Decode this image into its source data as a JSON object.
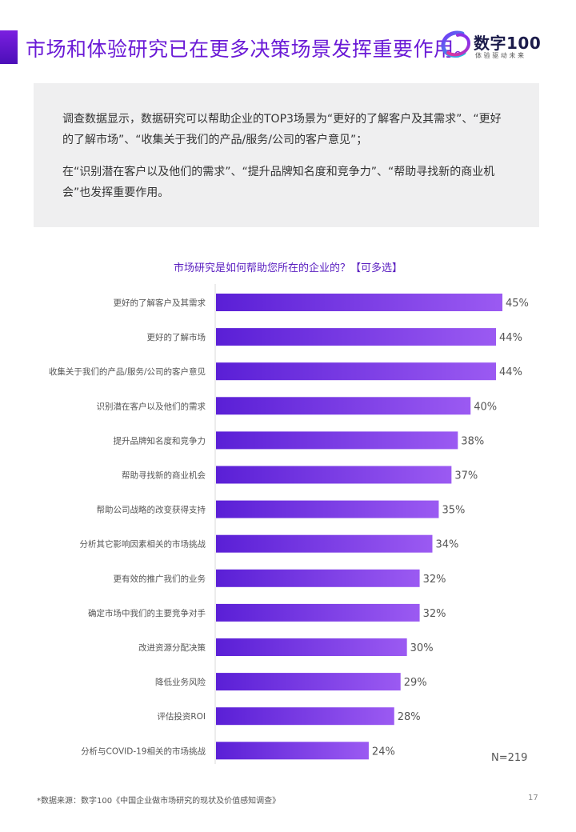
{
  "header": {
    "title": "市场和体验研究已在更多决策场景发挥重要作用。",
    "logo_name": "数字100",
    "logo_tagline": "体验驱动未来"
  },
  "summary": {
    "paragraph1": "调查数据显示，数据研究可以帮助企业的TOP3场景为“更好的了解客户及其需求”、“更好的了解市场”、“收集关于我们的产品/服务/公司的客户意见”；",
    "paragraph2": "在“识别潜在客户以及他们的需求”、“提升品牌知名度和竞争力”、“帮助寻找新的商业机会”也发挥重要作用。"
  },
  "chart_data": {
    "type": "bar",
    "orientation": "horizontal",
    "title": "市场研究是如何帮助您所在的企业的？【可多选】",
    "categories": [
      "更好的了解客户及其需求",
      "更好的了解市场",
      "收集关于我们的产品/服务/公司的客户意见",
      "识别潜在客户以及他们的需求",
      "提升品牌知名度和竞争力",
      "帮助寻找新的商业机会",
      "帮助公司战略的改变获得支持",
      "分析其它影响因素相关的市场挑战",
      "更有效的推广我们的业务",
      "确定市场中我们的主要竞争对手",
      "改进资源分配决策",
      "降低业务风险",
      "评估投资ROI",
      "分析与COVID-19相关的市场挑战"
    ],
    "values": [
      45,
      44,
      44,
      40,
      38,
      37,
      35,
      34,
      32,
      32,
      30,
      29,
      28,
      24
    ],
    "value_labels": [
      "45%",
      "44%",
      "44%",
      "40%",
      "38%",
      "37%",
      "35%",
      "34%",
      "32%",
      "32%",
      "30%",
      "29%",
      "28%",
      "24%"
    ],
    "xlim": [
      0,
      45
    ],
    "grid": false,
    "bar_color_start": "#5a1fd6",
    "bar_color_end": "#9b5af2"
  },
  "sample_size": "N=219",
  "footer": {
    "source": "*数据来源：数字100《中国企业做市场研究的现状及价值感知调查》",
    "page_number": "17"
  },
  "colors": {
    "accent": "#6a1ad6",
    "box_background": "#efeff0"
  }
}
